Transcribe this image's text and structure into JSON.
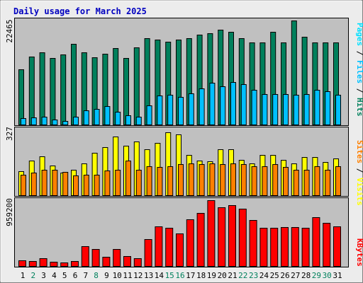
{
  "title": "Daily usage for March 2025",
  "colors": {
    "frame": "#ececec",
    "panel": "#c0c0c0",
    "hits": "#00805c",
    "files": "#00c0ff",
    "pages": "#00e0ff",
    "visits": "#ffff00",
    "sites": "#ff8000",
    "kbytes": "#ff0000",
    "title": "#0000c0",
    "weekday": "#000000",
    "weekend": "#00805c"
  },
  "side_labels": {
    "pages": "Pages",
    "files": "Files",
    "hits": "Hits",
    "sites": "Sites",
    "visits": "Visits",
    "kbytes": "KBytes",
    "sep": " / "
  },
  "chart_data": [
    {
      "type": "bar",
      "panel": "hits-files-pages",
      "title": "Daily usage for March 2025",
      "x": [
        1,
        2,
        3,
        4,
        5,
        6,
        7,
        8,
        9,
        10,
        11,
        12,
        13,
        14,
        15,
        16,
        17,
        18,
        19,
        20,
        21,
        22,
        23,
        24,
        25,
        26,
        27,
        28,
        29,
        30,
        31
      ],
      "max_label": "22465",
      "ylim": [
        0,
        22465
      ],
      "series": [
        {
          "name": "Hits",
          "values": [
            11850,
            14650,
            15650,
            14350,
            15150,
            17450,
            15650,
            14450,
            15350,
            16500,
            14350,
            16700,
            18650,
            18350,
            17850,
            18300,
            18650,
            19450,
            19650,
            20450,
            19950,
            18650,
            17700,
            17700,
            19950,
            17700,
            22465,
            19000,
            17700,
            17700,
            17700
          ]
        },
        {
          "name": "Files",
          "values": [
            1450,
            1550,
            1700,
            1100,
            750,
            1650,
            3000,
            3300,
            4000,
            2700,
            2050,
            1650,
            4100,
            6200,
            6350,
            5900,
            6800,
            7800,
            8950,
            8200,
            9100,
            8700,
            7500,
            6600,
            6500,
            6550,
            6450,
            6600,
            7500,
            7150,
            6450
          ]
        },
        {
          "name": "Pages",
          "values": [
            0,
            0,
            0,
            0,
            0,
            0,
            0,
            0,
            0,
            0,
            0,
            0,
            0,
            0,
            0,
            0,
            0,
            0,
            0,
            0,
            0,
            0,
            0,
            0,
            0,
            0,
            0,
            0,
            0,
            0,
            0
          ]
        }
      ]
    },
    {
      "type": "bar",
      "panel": "visits-sites",
      "x": [
        1,
        2,
        3,
        4,
        5,
        6,
        7,
        8,
        9,
        10,
        11,
        12,
        13,
        14,
        15,
        16,
        17,
        18,
        19,
        20,
        21,
        22,
        23,
        24,
        25,
        26,
        27,
        28,
        29,
        30,
        31
      ],
      "max_label": "327",
      "ylim": [
        0,
        327
      ],
      "series": [
        {
          "name": "Visits",
          "values": [
            120,
            170,
            190,
            145,
            112,
            126,
            158,
            210,
            238,
            290,
            242,
            266,
            225,
            257,
            310,
            298,
            197,
            170,
            168,
            225,
            225,
            173,
            158,
            200,
            200,
            175,
            157,
            187,
            187,
            162,
            182
          ]
        },
        {
          "name": "Sites",
          "values": [
            102,
            112,
            125,
            125,
            116,
            97,
            102,
            102,
            122,
            125,
            172,
            125,
            142,
            138,
            141,
            153,
            157,
            154,
            155,
            154,
            157,
            154,
            142,
            142,
            154,
            138,
            126,
            126,
            141,
            124,
            141
          ]
        }
      ]
    },
    {
      "type": "bar",
      "panel": "kbytes",
      "x": [
        1,
        2,
        3,
        4,
        5,
        6,
        7,
        8,
        9,
        10,
        11,
        12,
        13,
        14,
        15,
        16,
        17,
        18,
        19,
        20,
        21,
        22,
        23,
        24,
        25,
        26,
        27,
        28,
        29,
        30,
        31
      ],
      "max_label": "959200",
      "ylim": [
        0,
        959200
      ],
      "series": [
        {
          "name": "KBytes",
          "values": [
            85000,
            72000,
            112000,
            62000,
            48000,
            76000,
            292000,
            252000,
            132000,
            252000,
            140000,
            110000,
            392000,
            582000,
            562000,
            472000,
            682000,
            772000,
            959200,
            852000,
            882000,
            832000,
            672000,
            562000,
            562000,
            572000,
            572000,
            562000,
            712000,
            632000,
            582000
          ]
        }
      ]
    }
  ],
  "days": [
    {
      "label": "1",
      "weekend": false
    },
    {
      "label": "2",
      "weekend": true
    },
    {
      "label": "3",
      "weekend": false
    },
    {
      "label": "4",
      "weekend": false
    },
    {
      "label": "5",
      "weekend": false
    },
    {
      "label": "6",
      "weekend": false
    },
    {
      "label": "7",
      "weekend": false
    },
    {
      "label": "8",
      "weekend": true
    },
    {
      "label": "9",
      "weekend": false
    },
    {
      "label": "10",
      "weekend": false
    },
    {
      "label": "11",
      "weekend": false
    },
    {
      "label": "12",
      "weekend": false
    },
    {
      "label": "13",
      "weekend": false
    },
    {
      "label": "14",
      "weekend": false
    },
    {
      "label": "15",
      "weekend": true
    },
    {
      "label": "16",
      "weekend": true
    },
    {
      "label": "17",
      "weekend": false
    },
    {
      "label": "18",
      "weekend": false
    },
    {
      "label": "19",
      "weekend": false
    },
    {
      "label": "20",
      "weekend": false
    },
    {
      "label": "21",
      "weekend": false
    },
    {
      "label": "22",
      "weekend": true
    },
    {
      "label": "23",
      "weekend": true
    },
    {
      "label": "24",
      "weekend": false
    },
    {
      "label": "25",
      "weekend": false
    },
    {
      "label": "26",
      "weekend": false
    },
    {
      "label": "27",
      "weekend": false
    },
    {
      "label": "28",
      "weekend": false
    },
    {
      "label": "29",
      "weekend": true
    },
    {
      "label": "30",
      "weekend": true
    },
    {
      "label": "31",
      "weekend": false
    }
  ]
}
